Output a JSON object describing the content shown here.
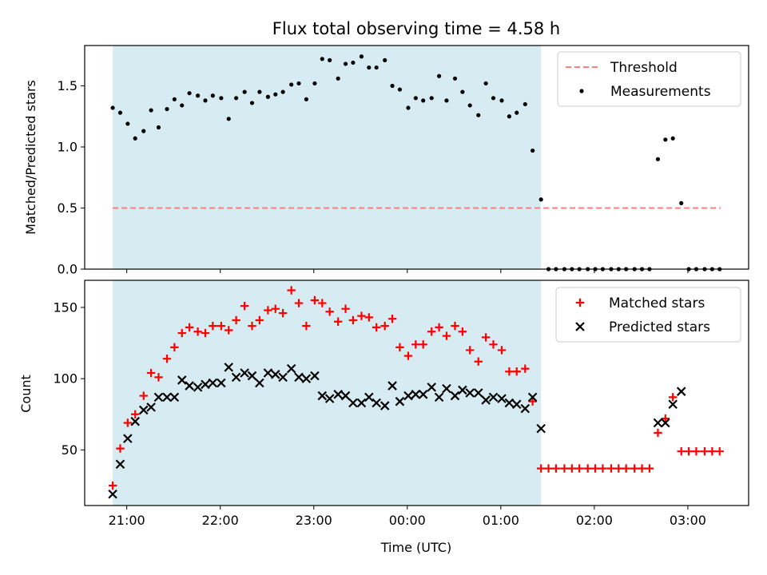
{
  "chart_data": {
    "type": "scatter",
    "title": "Flux total observing time = 4.58 h",
    "xlabel": "Time (UTC)",
    "x_unit": "hours relative to 00:00 UTC (negative = previous evening)",
    "xlim": [
      -3.45,
      3.65
    ],
    "x_ticks": [
      {
        "value": -3,
        "label": "21:00"
      },
      {
        "value": -2,
        "label": "22:00"
      },
      {
        "value": -1,
        "label": "23:00"
      },
      {
        "value": 0,
        "label": "00:00"
      },
      {
        "value": 1,
        "label": "01:00"
      },
      {
        "value": 2,
        "label": "02:00"
      },
      {
        "value": 3,
        "label": "03:00"
      }
    ],
    "observing_window": {
      "start": -3.15,
      "end": 1.43,
      "color": "#add8e6"
    },
    "panels": [
      {
        "id": "ratio",
        "ylabel": "Matched/Predicted stars",
        "ylim": [
          0,
          1.83
        ],
        "y_ticks": [
          0.0,
          0.5,
          1.0,
          1.5
        ],
        "y_tick_labels": [
          "0.0",
          "0.5",
          "1.0",
          "1.5"
        ],
        "legend_position": "upper right",
        "series": [
          {
            "name": "Threshold",
            "kind": "dashed-line",
            "color": "#ff7f7f",
            "x": [
              -3.15,
              3.35
            ],
            "y": [
              0.5,
              0.5
            ]
          },
          {
            "name": "Measurements",
            "kind": "dot",
            "color": "#000000",
            "x": [
              -3.15,
              -3.07,
              -2.99,
              -2.91,
              -2.82,
              -2.74,
              -2.66,
              -2.57,
              -2.49,
              -2.41,
              -2.33,
              -2.24,
              -2.16,
              -2.08,
              -1.99,
              -1.91,
              -1.83,
              -1.74,
              -1.66,
              -1.58,
              -1.49,
              -1.41,
              -1.33,
              -1.24,
              -1.16,
              -1.08,
              -0.99,
              -0.91,
              -0.83,
              -0.74,
              -0.66,
              -0.58,
              -0.49,
              -0.41,
              -0.33,
              -0.24,
              -0.16,
              -0.08,
              0.01,
              0.09,
              0.17,
              0.26,
              0.34,
              0.42,
              0.51,
              0.59,
              0.67,
              0.76,
              0.84,
              0.92,
              1.01,
              1.09,
              1.17,
              1.26,
              1.34,
              1.43,
              1.51,
              1.59,
              1.68,
              1.76,
              1.84,
              1.93,
              2.01,
              2.09,
              2.18,
              2.26,
              2.34,
              2.43,
              2.51,
              2.59,
              2.68,
              2.76,
              2.84,
              2.93,
              3.01,
              3.09,
              3.18,
              3.26,
              3.34
            ],
            "y": [
              1.32,
              1.28,
              1.19,
              1.07,
              1.13,
              1.3,
              1.16,
              1.31,
              1.39,
              1.34,
              1.44,
              1.42,
              1.38,
              1.42,
              1.4,
              1.23,
              1.4,
              1.45,
              1.36,
              1.45,
              1.41,
              1.43,
              1.45,
              1.51,
              1.52,
              1.39,
              1.52,
              1.72,
              1.71,
              1.56,
              1.68,
              1.69,
              1.74,
              1.65,
              1.65,
              1.71,
              1.5,
              1.47,
              1.32,
              1.4,
              1.38,
              1.4,
              1.58,
              1.38,
              1.56,
              1.45,
              1.34,
              1.26,
              1.52,
              1.4,
              1.38,
              1.25,
              1.28,
              1.35,
              0.97,
              0.57,
              0,
              0,
              0,
              0,
              0,
              0,
              0,
              0,
              0,
              0,
              0,
              0,
              0,
              0,
              0.9,
              1.06,
              1.07,
              0.54,
              0,
              0,
              0,
              0,
              0
            ]
          }
        ]
      },
      {
        "id": "counts",
        "ylabel": "Count",
        "ylim": [
          11,
          169
        ],
        "y_ticks": [
          50,
          100,
          150
        ],
        "y_tick_labels": [
          "50",
          "100",
          "150"
        ],
        "legend_position": "upper right",
        "series": [
          {
            "name": "Matched stars",
            "kind": "plus",
            "color": "#ff0000",
            "x": [
              -3.15,
              -3.07,
              -2.99,
              -2.91,
              -2.82,
              -2.74,
              -2.66,
              -2.57,
              -2.49,
              -2.41,
              -2.33,
              -2.24,
              -2.16,
              -2.08,
              -1.99,
              -1.91,
              -1.83,
              -1.74,
              -1.66,
              -1.58,
              -1.49,
              -1.41,
              -1.33,
              -1.24,
              -1.16,
              -1.08,
              -0.99,
              -0.91,
              -0.83,
              -0.74,
              -0.66,
              -0.58,
              -0.49,
              -0.41,
              -0.33,
              -0.24,
              -0.16,
              -0.08,
              0.01,
              0.09,
              0.17,
              0.26,
              0.34,
              0.42,
              0.51,
              0.59,
              0.67,
              0.76,
              0.84,
              0.92,
              1.01,
              1.09,
              1.17,
              1.26,
              1.34,
              1.43,
              1.51,
              1.59,
              1.68,
              1.76,
              1.84,
              1.93,
              2.01,
              2.09,
              2.18,
              2.26,
              2.34,
              2.43,
              2.51,
              2.59,
              2.68,
              2.76,
              2.84,
              2.93,
              3.01,
              3.09,
              3.18,
              3.26,
              3.34
            ],
            "y": [
              25,
              51,
              69,
              75,
              88,
              104,
              101,
              114,
              122,
              132,
              136,
              133,
              132,
              137,
              137,
              134,
              141,
              151,
              137,
              141,
              148,
              149,
              146,
              162,
              153,
              137,
              155,
              153,
              147,
              140,
              149,
              141,
              144,
              143,
              136,
              137,
              142,
              122,
              116,
              124,
              124,
              133,
              136,
              130,
              137,
              133,
              120,
              112,
              129,
              124,
              120,
              105,
              105,
              107,
              84,
              37,
              37,
              37,
              37,
              37,
              37,
              37,
              37,
              37,
              37,
              37,
              37,
              37,
              37,
              37,
              62,
              72,
              87,
              49,
              49,
              49,
              49,
              49,
              49
            ]
          },
          {
            "name": "Predicted stars",
            "kind": "x",
            "color": "#000000",
            "x": [
              -3.15,
              -3.07,
              -2.99,
              -2.91,
              -2.82,
              -2.74,
              -2.66,
              -2.57,
              -2.49,
              -2.41,
              -2.33,
              -2.24,
              -2.16,
              -2.08,
              -1.99,
              -1.91,
              -1.83,
              -1.74,
              -1.66,
              -1.58,
              -1.49,
              -1.41,
              -1.33,
              -1.24,
              -1.16,
              -1.08,
              -0.99,
              -0.91,
              -0.83,
              -0.74,
              -0.66,
              -0.58,
              -0.49,
              -0.41,
              -0.33,
              -0.24,
              -0.16,
              -0.08,
              0.01,
              0.09,
              0.17,
              0.26,
              0.34,
              0.42,
              0.51,
              0.59,
              0.67,
              0.76,
              0.84,
              0.92,
              1.01,
              1.09,
              1.17,
              1.26,
              1.34,
              1.43,
              2.68,
              2.76,
              2.84,
              2.93
            ],
            "y": [
              19,
              40,
              58,
              70,
              78,
              80,
              87,
              87,
              87,
              99,
              95,
              94,
              96,
              97,
              97,
              108,
              101,
              104,
              102,
              97,
              104,
              103,
              101,
              107,
              101,
              100,
              102,
              88,
              86,
              89,
              88,
              83,
              83,
              87,
              83,
              81,
              95,
              84,
              88,
              89,
              89,
              94,
              87,
              93,
              88,
              92,
              90,
              90,
              85,
              87,
              86,
              83,
              82,
              79,
              87,
              65,
              69,
              69,
              82,
              91
            ]
          }
        ]
      }
    ]
  }
}
